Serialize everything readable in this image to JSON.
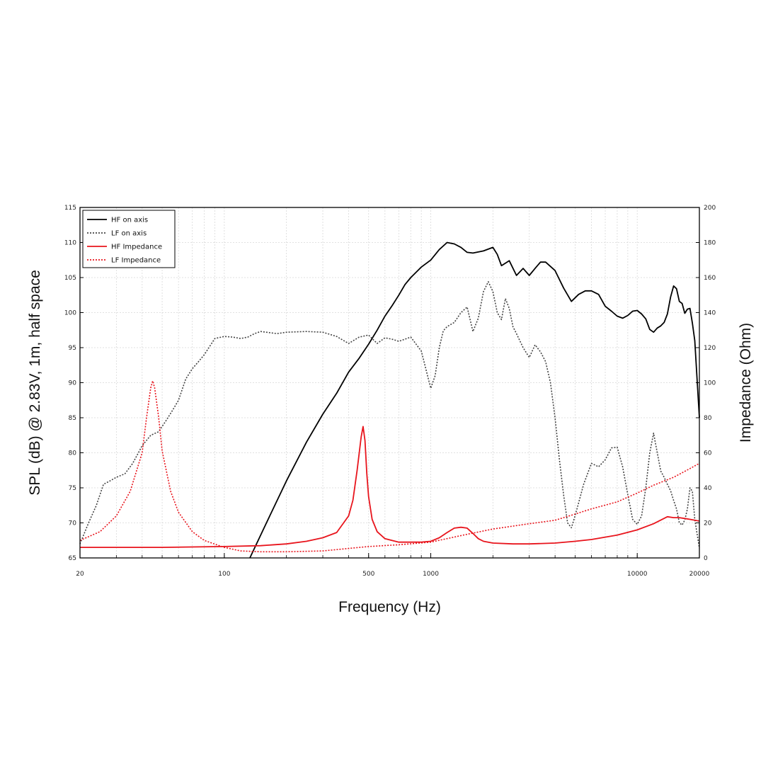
{
  "chart_data": {
    "type": "line",
    "xlabel": "Frequency (Hz)",
    "ylabel": "SPL (dB) @ 2.83V, 1m, half space",
    "y2label": "Impedance (Ohm)",
    "x_scale": "log",
    "xlim": [
      20,
      20000
    ],
    "ylim": [
      65,
      115
    ],
    "y2lim": [
      0,
      200
    ],
    "grid": true,
    "legend_position": "top-left",
    "x_tick_labels": [
      "20",
      "100",
      "500",
      "1000",
      "10000",
      "20000"
    ],
    "x_tick_values": [
      20,
      100,
      500,
      1000,
      10000,
      20000
    ],
    "y_tick_labels": [
      "65",
      "70",
      "75",
      "80",
      "85",
      "90",
      "95",
      "100",
      "105",
      "110",
      "115"
    ],
    "y2_tick_labels": [
      "0",
      "20",
      "40",
      "60",
      "80",
      "100",
      "120",
      "140",
      "160",
      "180",
      "200"
    ],
    "series": [
      {
        "name": "HF on axis",
        "axis": "left",
        "color": "#000000",
        "style": "solid",
        "x": [
          133,
          160,
          200,
          250,
          300,
          350,
          400,
          450,
          500,
          550,
          600,
          650,
          700,
          750,
          800,
          900,
          1000,
          1100,
          1200,
          1300,
          1400,
          1500,
          1600,
          1800,
          2000,
          2100,
          2200,
          2400,
          2600,
          2800,
          3000,
          3200,
          3400,
          3600,
          4000,
          4400,
          4800,
          5200,
          5600,
          6000,
          6500,
          7000,
          7500,
          8000,
          8500,
          9000,
          9500,
          10000,
          10500,
          11000,
          11500,
          12000,
          12500,
          13000,
          13500,
          14000,
          14500,
          15000,
          15500,
          16000,
          16500,
          17000,
          17500,
          18000,
          18500,
          19000,
          20000
        ],
        "y": [
          65,
          70,
          76,
          81.5,
          85.5,
          88.5,
          91.5,
          93.5,
          95.5,
          97.5,
          99.5,
          101,
          102.5,
          104,
          105,
          106.5,
          107.5,
          109,
          110,
          109.8,
          109.3,
          108.6,
          108.5,
          108.8,
          109.3,
          108.3,
          106.7,
          107.4,
          105.3,
          106.3,
          105.3,
          106.3,
          107.2,
          107.2,
          106,
          103.5,
          101.6,
          102.6,
          103.1,
          103.1,
          102.6,
          100.9,
          100.2,
          99.5,
          99.2,
          99.6,
          100.2,
          100.3,
          99.8,
          99.1,
          97.6,
          97.2,
          97.8,
          98.1,
          98.6,
          99.8,
          102.2,
          103.8,
          103.4,
          101.6,
          101.3,
          99.9,
          100.5,
          100.6,
          98.5,
          96.0,
          85.0
        ]
      },
      {
        "name": "LF on axis",
        "axis": "left",
        "color": "#444444",
        "style": "dotted",
        "x": [
          20,
          22,
          24,
          26,
          28,
          30,
          33,
          36,
          40,
          44,
          48,
          52,
          56,
          60,
          65,
          70,
          75,
          80,
          90,
          100,
          110,
          120,
          130,
          140,
          150,
          180,
          200,
          250,
          300,
          350,
          400,
          450,
          500,
          550,
          600,
          650,
          700,
          800,
          900,
          1000,
          1050,
          1100,
          1150,
          1200,
          1300,
          1400,
          1500,
          1600,
          1700,
          1800,
          1900,
          2000,
          2100,
          2200,
          2300,
          2400,
          2500,
          2600,
          2700,
          2800,
          3000,
          3200,
          3400,
          3600,
          3800,
          4000,
          4200,
          4400,
          4600,
          4800,
          5000,
          5500,
          6000,
          6500,
          7000,
          7500,
          8000,
          8500,
          9000,
          9500,
          10000,
          10500,
          11000,
          11500,
          12000,
          12500,
          13000,
          13500,
          14000,
          14500,
          15000,
          15500,
          16000,
          16500,
          17000,
          17500,
          18000,
          18500,
          19000,
          20000
        ],
        "y": [
          67,
          70,
          72.5,
          75.5,
          76,
          76.5,
          77,
          78.5,
          81,
          82.5,
          83,
          84.5,
          86,
          87.5,
          90.5,
          92,
          93,
          94,
          96.3,
          96.6,
          96.5,
          96.3,
          96.5,
          97,
          97.3,
          97,
          97.2,
          97.3,
          97.2,
          96.6,
          95.6,
          96.5,
          96.8,
          95.6,
          96.4,
          96.2,
          95.9,
          96.5,
          94.5,
          89.2,
          91,
          95,
          97.4,
          98,
          98.6,
          100,
          100.8,
          97.3,
          99.2,
          103,
          104.4,
          103,
          100,
          99,
          102,
          100.6,
          98,
          97,
          96,
          95,
          93.6,
          95.4,
          94.4,
          93,
          90,
          85,
          79,
          74,
          70,
          69.3,
          71,
          75.5,
          78.5,
          78,
          79,
          80.7,
          80.8,
          78,
          74,
          70.5,
          69.8,
          71,
          75,
          80,
          82.8,
          80,
          77.4,
          76.5,
          75.5,
          74.6,
          73.2,
          72,
          70,
          69.7,
          70.4,
          72,
          75,
          74.5,
          70.5,
          66.4
        ]
      },
      {
        "name": "HF Impedance",
        "axis": "right",
        "color": "#e8141c",
        "style": "solid",
        "x": [
          20,
          50,
          100,
          150,
          200,
          250,
          300,
          350,
          400,
          420,
          440,
          460,
          470,
          480,
          490,
          500,
          520,
          550,
          600,
          700,
          800,
          900,
          1000,
          1100,
          1200,
          1300,
          1400,
          1500,
          1600,
          1700,
          1800,
          2000,
          2500,
          3000,
          4000,
          5000,
          6000,
          8000,
          10000,
          12000,
          14000,
          15000,
          16000,
          17000,
          18000,
          19000,
          20000
        ],
        "y": [
          6,
          6,
          6.5,
          7,
          8,
          9.5,
          11.5,
          14.5,
          24,
          33,
          50,
          69,
          75,
          67,
          48,
          35,
          22,
          15,
          11,
          9,
          9,
          9,
          9.5,
          11.5,
          14.5,
          17,
          17.5,
          17,
          14,
          11,
          9.5,
          8.5,
          8,
          8,
          8.5,
          9.5,
          10.5,
          13,
          16,
          19.5,
          23.5,
          23,
          23,
          22.5,
          22,
          21.5,
          21
        ]
      },
      {
        "name": "LF Impedance",
        "axis": "right",
        "color": "#e8141c",
        "style": "dotted",
        "x": [
          20,
          25,
          30,
          35,
          40,
          42,
          44,
          45,
          46,
          48,
          50,
          55,
          60,
          70,
          80,
          100,
          120,
          150,
          200,
          300,
          500,
          700,
          1000,
          1500,
          2000,
          3000,
          4000,
          5000,
          6000,
          8000,
          10000,
          12000,
          15000,
          18000,
          20000
        ],
        "y": [
          10,
          15,
          24,
          38,
          60,
          80,
          97,
          101,
          97,
          81,
          61,
          38,
          26,
          15,
          10,
          6,
          4,
          3.5,
          3.5,
          4,
          6.5,
          7.5,
          9,
          13.5,
          16.5,
          19.5,
          21.5,
          25,
          28,
          32,
          37,
          41.5,
          46,
          51,
          54
        ]
      }
    ]
  }
}
